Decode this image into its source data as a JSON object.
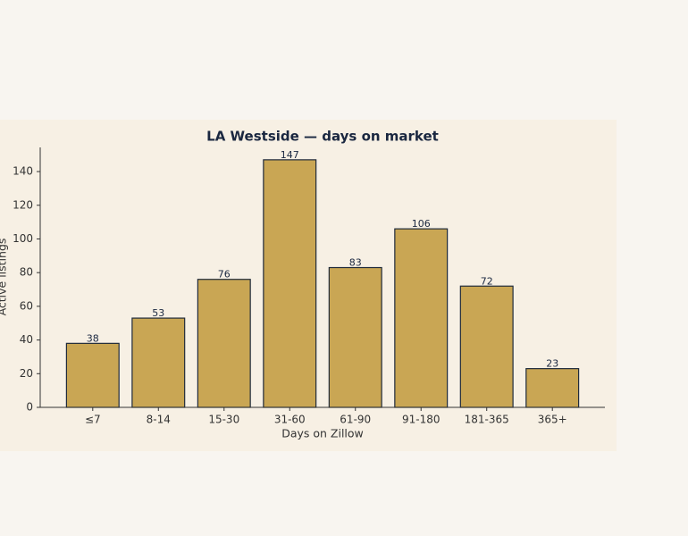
{
  "chart_data": {
    "type": "bar",
    "title": "LA Westside — days on market",
    "x_label": "Days on Zillow",
    "y_label": "Active listings",
    "categories": [
      "≤7",
      "8-14",
      "15-30",
      "31-60",
      "61-90",
      "91-180",
      "181-365",
      "365+"
    ],
    "values": [
      38,
      53,
      76,
      147,
      83,
      106,
      72,
      23
    ],
    "color": "#c9a654",
    "edge_color": "#1f2a3a",
    "ylim": [
      0,
      154.35
    ],
    "yticks": [
      0,
      20,
      40,
      60,
      80,
      100,
      120,
      140
    ]
  }
}
